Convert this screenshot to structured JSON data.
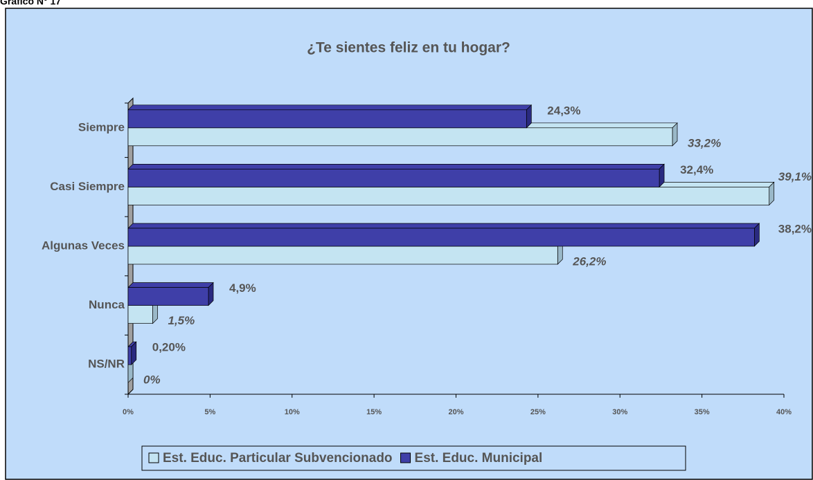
{
  "header": "Gráfico N° 17",
  "chart_data": {
    "type": "hbar",
    "title": "¿Te sientes feliz en tu hogar?",
    "categories": [
      "Siempre",
      "Casi Siempre",
      "Algunas Veces",
      "Nunca",
      "NS/NR"
    ],
    "series": [
      {
        "name": "Est. Educ. Particular Subvencionado",
        "color": "#c4e4f2",
        "values": [
          33.2,
          39.1,
          26.2,
          1.5,
          0
        ],
        "value_labels": [
          "33,2%",
          "39,1%",
          "26,2%",
          "1,5%",
          "0%"
        ]
      },
      {
        "name": "Est. Educ. Municipal",
        "color": "#3f3fa8",
        "values": [
          24.3,
          32.4,
          38.2,
          4.9,
          0.2
        ],
        "value_labels": [
          "24,3%",
          "32,4%",
          "38,2%",
          "4,9%",
          "0,20%"
        ]
      }
    ],
    "xlim": [
      0,
      40
    ],
    "xticks": [
      {
        "value": 0,
        "label": "0%"
      },
      {
        "value": 5,
        "label": "5%"
      },
      {
        "value": 10,
        "label": "10%"
      },
      {
        "value": 15,
        "label": "15%"
      },
      {
        "value": 20,
        "label": "20%"
      },
      {
        "value": 25,
        "label": "25%"
      },
      {
        "value": 30,
        "label": "30%"
      },
      {
        "value": 35,
        "label": "35%"
      },
      {
        "value": 40,
        "label": "40%"
      }
    ],
    "legend": "bottom"
  }
}
